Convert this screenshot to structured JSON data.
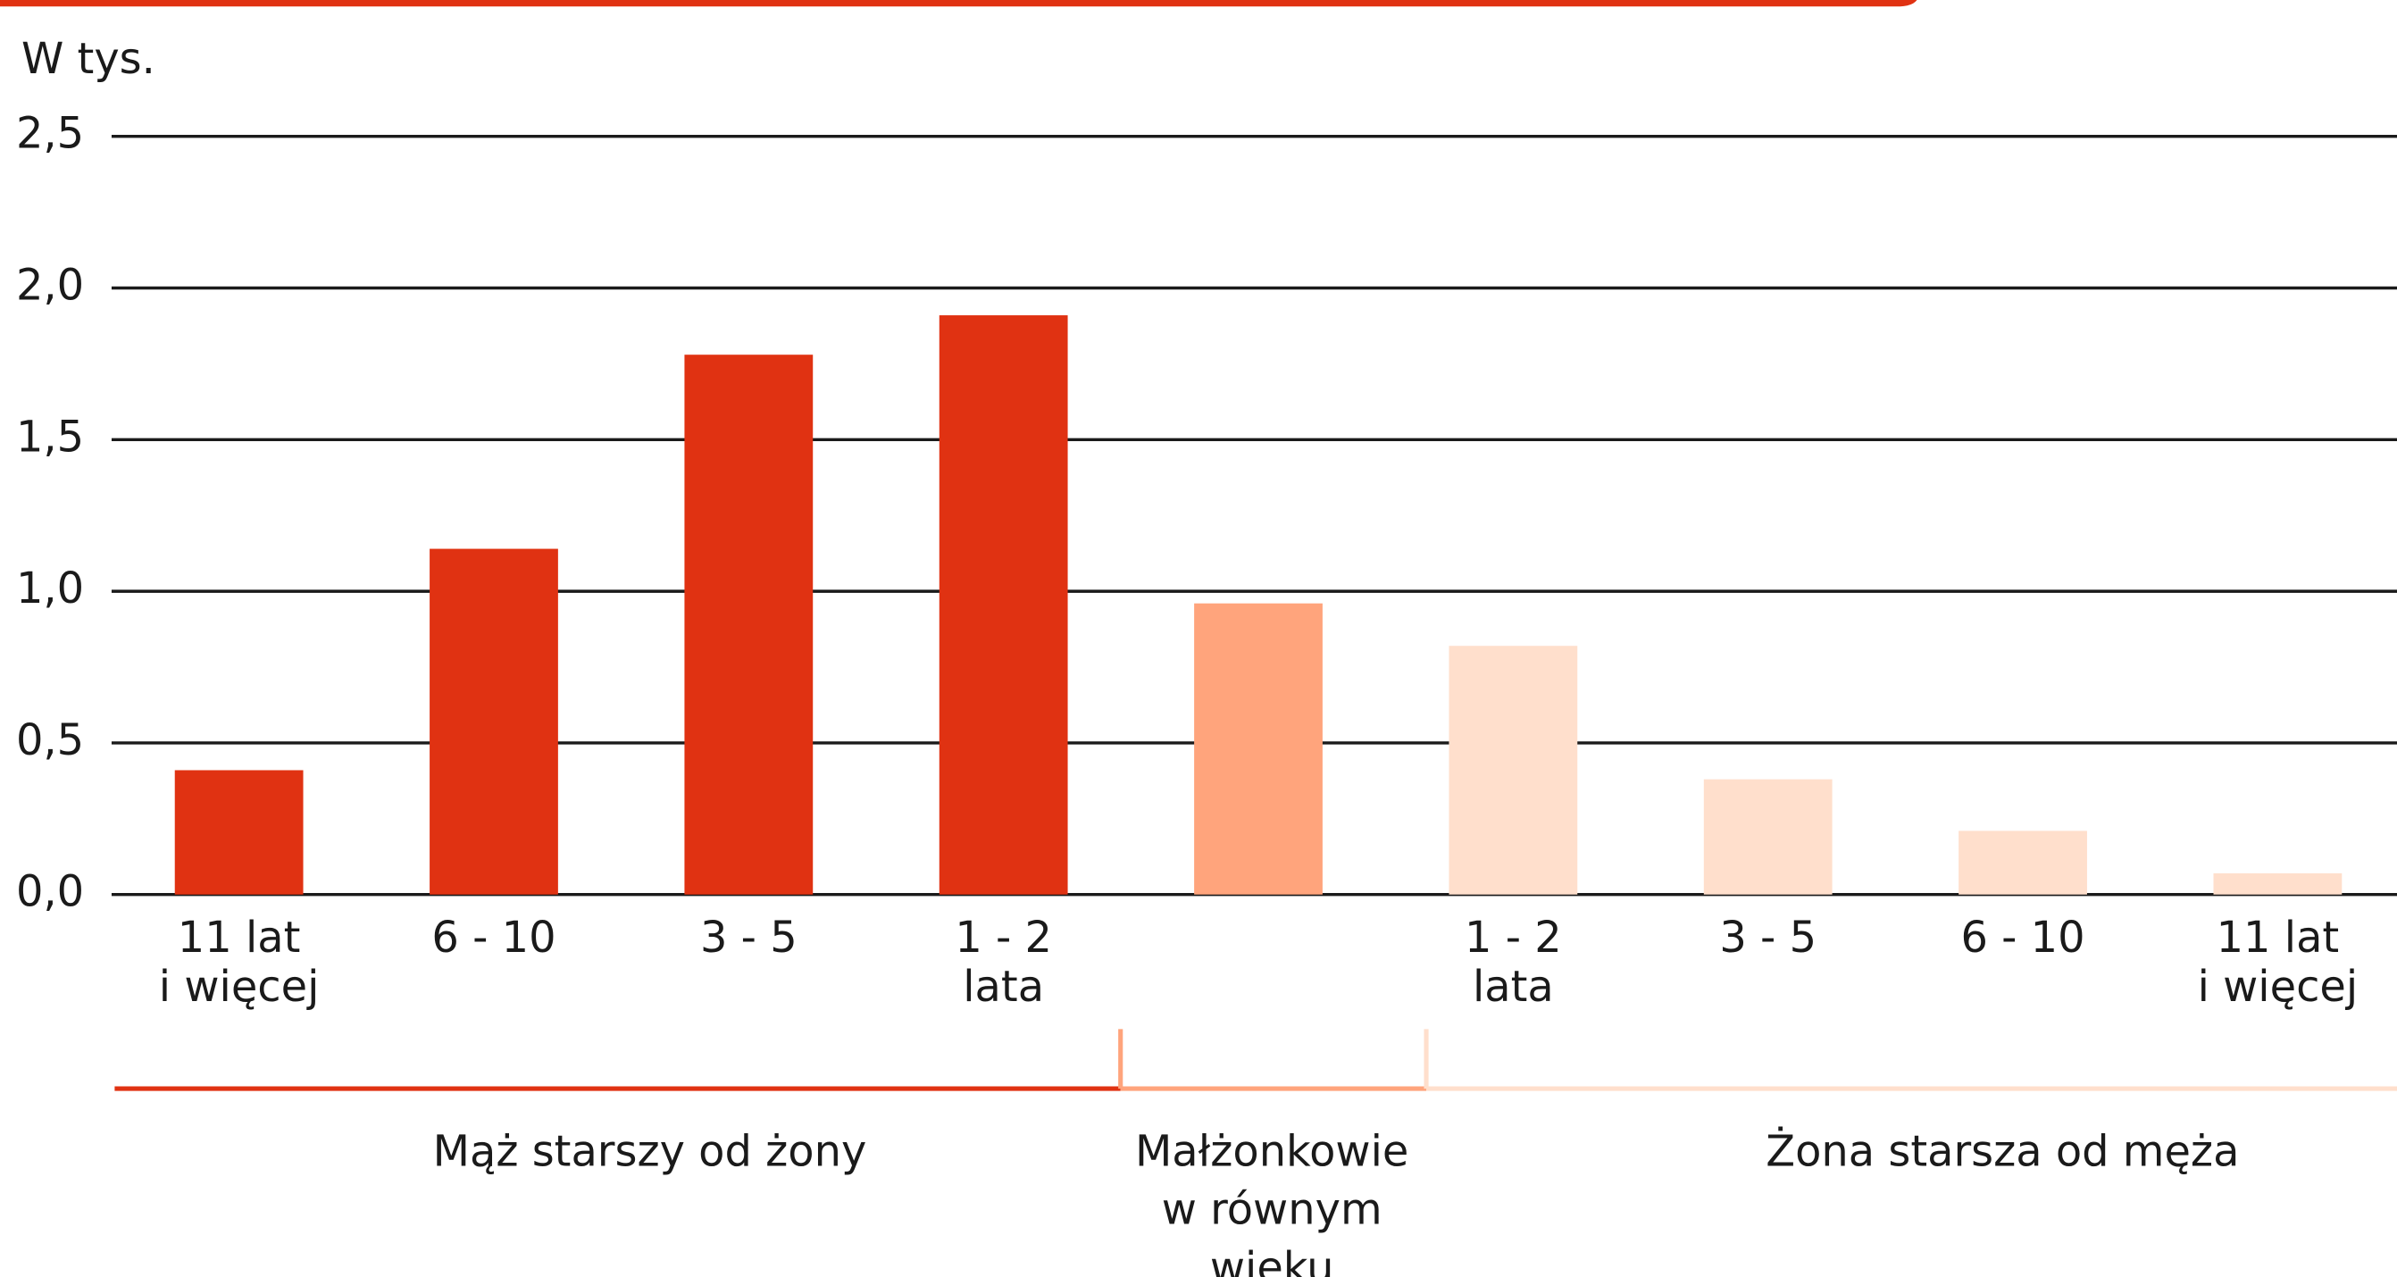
{
  "chart_data": {
    "type": "bar",
    "y_unit_label": "W tys.",
    "categories": [
      [
        "11 lat",
        "i więcej"
      ],
      [
        "6 - 10"
      ],
      [
        "3 - 5"
      ],
      [
        "1 - 2",
        "lata"
      ],
      null,
      [
        "1 - 2",
        "lata"
      ],
      [
        "3 - 5"
      ],
      [
        "6 - 10"
      ],
      [
        "11 lat",
        "i więcej"
      ]
    ],
    "values": [
      0.41,
      1.14,
      1.78,
      1.91,
      0.96,
      0.82,
      0.38,
      0.21,
      0.07
    ],
    "colors": [
      "#e03212",
      "#e03212",
      "#e03212",
      "#e03212",
      "#ffa47c",
      "#ffdfcc",
      "#ffdfcc",
      "#ffdfcc",
      "#ffdfcc"
    ],
    "groups": [
      {
        "label": [
          "Mąż starszy od żony"
        ],
        "color": "#e03212"
      },
      {
        "label": [
          "Małżonkowie",
          "w równym",
          "wieku"
        ],
        "color": "#ffa47c"
      },
      {
        "label": [
          "Żona starsza od męża"
        ],
        "color": "#ffdfcc"
      }
    ],
    "ylim": [
      0,
      2.5
    ],
    "yticks": [
      {
        "value": 0,
        "label": "0,0"
      },
      {
        "value": 0.5,
        "label": "0,5"
      },
      {
        "value": 1,
        "label": "1,0"
      },
      {
        "value": 1.5,
        "label": "1,5"
      },
      {
        "value": 2,
        "label": "2,0"
      },
      {
        "value": 2.5,
        "label": "2,5"
      }
    ],
    "grid": true
  }
}
